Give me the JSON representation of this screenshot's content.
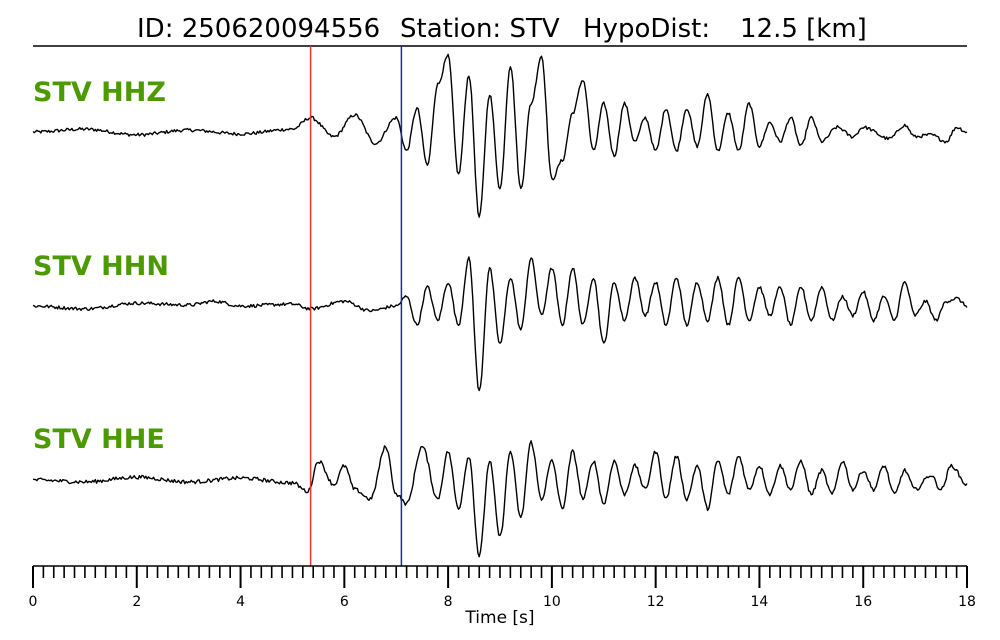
{
  "chart_data": {
    "type": "line",
    "title_parts": {
      "id": "ID: 250620094556",
      "station": "Station: STV",
      "hypodist_label": "HypoDist:",
      "hypodist_value": "12.5 [km]"
    },
    "xlabel": "Time [s]",
    "xlim": [
      0,
      18
    ],
    "x_major_ticks": [
      0,
      2,
      4,
      6,
      8,
      10,
      12,
      14,
      16,
      18
    ],
    "x_tick_labels": [
      "0",
      "2",
      "4",
      "6",
      "8",
      "10",
      "12",
      "14",
      "16",
      "18"
    ],
    "x_minor_step": 0.2,
    "grid": false,
    "picks": [
      {
        "phase_color": "#e8332a",
        "time": 5.35
      },
      {
        "phase_color": "#2222bb",
        "time": 7.1
      }
    ],
    "series": [
      {
        "name": "STV HHZ",
        "color": "#000000",
        "anchors": [
          [
            0,
            0
          ],
          [
            1,
            0.3
          ],
          [
            2,
            -0.3
          ],
          [
            3,
            0.2
          ],
          [
            4,
            -0.2
          ],
          [
            5,
            0.3
          ],
          [
            5.35,
            1.5
          ],
          [
            5.8,
            -0.5
          ],
          [
            6.2,
            1.8
          ],
          [
            6.6,
            -1.2
          ],
          [
            7.0,
            1.5
          ],
          [
            7.2,
            -2
          ],
          [
            7.4,
            2.5
          ],
          [
            7.6,
            -3.5
          ],
          [
            7.8,
            5
          ],
          [
            8.0,
            8
          ],
          [
            8.2,
            -4.5
          ],
          [
            8.4,
            6
          ],
          [
            8.6,
            -9
          ],
          [
            8.8,
            4
          ],
          [
            9.0,
            -6
          ],
          [
            9.2,
            7
          ],
          [
            9.4,
            -6
          ],
          [
            9.6,
            3
          ],
          [
            9.8,
            8
          ],
          [
            10.0,
            -5
          ],
          [
            10.2,
            -3
          ],
          [
            10.4,
            2
          ],
          [
            10.6,
            5.5
          ],
          [
            10.8,
            -2
          ],
          [
            11.0,
            3
          ],
          [
            11.2,
            -2.5
          ],
          [
            11.4,
            3
          ],
          [
            11.6,
            -1
          ],
          [
            11.8,
            1.5
          ],
          [
            12.0,
            -2
          ],
          [
            12.2,
            2.5
          ],
          [
            12.4,
            -2
          ],
          [
            12.6,
            2.5
          ],
          [
            12.8,
            -1.5
          ],
          [
            13.0,
            4
          ],
          [
            13.2,
            -2
          ],
          [
            13.4,
            2
          ],
          [
            13.6,
            -2
          ],
          [
            13.8,
            3
          ],
          [
            14.0,
            -1.5
          ],
          [
            14.2,
            1
          ],
          [
            14.4,
            -1
          ],
          [
            14.6,
            1.5
          ],
          [
            14.8,
            -1.5
          ],
          [
            15.0,
            1.5
          ],
          [
            15.2,
            -1
          ],
          [
            15.5,
            0.5
          ],
          [
            15.8,
            -0.5
          ],
          [
            16.0,
            0.5
          ],
          [
            16.5,
            -0.7
          ],
          [
            16.8,
            0.7
          ],
          [
            17.0,
            -0.5
          ],
          [
            17.3,
            -0.3
          ],
          [
            17.6,
            -1
          ],
          [
            17.8,
            0.5
          ],
          [
            18.0,
            0
          ]
        ],
        "noise_amp": 0.35
      },
      {
        "name": "STV HHN",
        "color": "#000000",
        "anchors": [
          [
            0,
            0
          ],
          [
            1,
            -0.3
          ],
          [
            2,
            0.3
          ],
          [
            3,
            0.1
          ],
          [
            3.5,
            0.5
          ],
          [
            4,
            0
          ],
          [
            5,
            0.2
          ],
          [
            5.35,
            -0.3
          ],
          [
            6,
            0.5
          ],
          [
            6.5,
            -0.5
          ],
          [
            7.0,
            0
          ],
          [
            7.2,
            1
          ],
          [
            7.4,
            -2
          ],
          [
            7.6,
            2
          ],
          [
            7.8,
            -1.5
          ],
          [
            8.0,
            2.5
          ],
          [
            8.2,
            -2
          ],
          [
            8.4,
            5
          ],
          [
            8.6,
            -9
          ],
          [
            8.8,
            4
          ],
          [
            9.0,
            -4
          ],
          [
            9.2,
            3
          ],
          [
            9.4,
            -2.5
          ],
          [
            9.6,
            5
          ],
          [
            9.8,
            -1
          ],
          [
            10.0,
            4
          ],
          [
            10.2,
            -2
          ],
          [
            10.4,
            4
          ],
          [
            10.6,
            -2
          ],
          [
            10.8,
            3
          ],
          [
            11.0,
            -4
          ],
          [
            11.2,
            2.5
          ],
          [
            11.4,
            -1.5
          ],
          [
            11.6,
            3
          ],
          [
            11.8,
            -1
          ],
          [
            12.0,
            2.5
          ],
          [
            12.2,
            -2
          ],
          [
            12.4,
            3
          ],
          [
            12.6,
            -2
          ],
          [
            12.8,
            2.5
          ],
          [
            13.0,
            -1.5
          ],
          [
            13.2,
            3
          ],
          [
            13.4,
            -2
          ],
          [
            13.6,
            3
          ],
          [
            13.8,
            -1.5
          ],
          [
            14.0,
            2
          ],
          [
            14.2,
            -1
          ],
          [
            14.4,
            2
          ],
          [
            14.6,
            -2
          ],
          [
            14.8,
            2
          ],
          [
            15.0,
            -1.5
          ],
          [
            15.2,
            2
          ],
          [
            15.4,
            -1.5
          ],
          [
            15.6,
            1
          ],
          [
            15.8,
            -1
          ],
          [
            16.0,
            1.5
          ],
          [
            16.2,
            -1.5
          ],
          [
            16.4,
            1
          ],
          [
            16.6,
            -1.5
          ],
          [
            16.8,
            2.5
          ],
          [
            17.0,
            -1
          ],
          [
            17.2,
            0.5
          ],
          [
            17.4,
            -1.5
          ],
          [
            17.6,
            0.5
          ],
          [
            17.8,
            0.8
          ],
          [
            18.0,
            0
          ]
        ],
        "noise_amp": 0.35
      },
      {
        "name": "STV HHE",
        "color": "#000000",
        "anchors": [
          [
            0,
            0
          ],
          [
            1,
            -0.2
          ],
          [
            2,
            0.3
          ],
          [
            3,
            -0.2
          ],
          [
            4,
            0.2
          ],
          [
            5,
            -0.3
          ],
          [
            5.3,
            -1.2
          ],
          [
            5.5,
            2
          ],
          [
            5.8,
            -0.5
          ],
          [
            6.0,
            1.5
          ],
          [
            6.2,
            -1
          ],
          [
            6.5,
            -2
          ],
          [
            6.8,
            3.5
          ],
          [
            7.0,
            -1.5
          ],
          [
            7.2,
            -2.5
          ],
          [
            7.5,
            3.5
          ],
          [
            7.8,
            -2
          ],
          [
            8.0,
            3
          ],
          [
            8.2,
            -3
          ],
          [
            8.4,
            2.5
          ],
          [
            8.6,
            -8
          ],
          [
            8.8,
            2
          ],
          [
            9.0,
            -6
          ],
          [
            9.2,
            3
          ],
          [
            9.4,
            -4
          ],
          [
            9.6,
            4
          ],
          [
            9.8,
            -2
          ],
          [
            10.0,
            2
          ],
          [
            10.2,
            -3
          ],
          [
            10.4,
            3
          ],
          [
            10.6,
            -2
          ],
          [
            10.8,
            2
          ],
          [
            11.0,
            -2.5
          ],
          [
            11.2,
            2
          ],
          [
            11.4,
            -1.5
          ],
          [
            11.6,
            1.5
          ],
          [
            11.8,
            -1
          ],
          [
            12.0,
            3
          ],
          [
            12.2,
            -2
          ],
          [
            12.4,
            2.5
          ],
          [
            12.6,
            -2
          ],
          [
            12.8,
            1.5
          ],
          [
            13.0,
            -3
          ],
          [
            13.2,
            2
          ],
          [
            13.4,
            -1.5
          ],
          [
            13.6,
            2.5
          ],
          [
            13.8,
            -1
          ],
          [
            14.0,
            1.5
          ],
          [
            14.2,
            -1.5
          ],
          [
            14.4,
            1.5
          ],
          [
            14.6,
            -1
          ],
          [
            14.8,
            2
          ],
          [
            15.0,
            -1.5
          ],
          [
            15.2,
            1
          ],
          [
            15.4,
            -1.5
          ],
          [
            15.6,
            2
          ],
          [
            15.8,
            -1
          ],
          [
            16.0,
            1
          ],
          [
            16.2,
            -1
          ],
          [
            16.4,
            1.5
          ],
          [
            16.6,
            -1.5
          ],
          [
            16.8,
            1
          ],
          [
            17.0,
            -1
          ],
          [
            17.3,
            0.5
          ],
          [
            17.5,
            -1
          ],
          [
            17.7,
            1.5
          ],
          [
            18.0,
            -0.5
          ]
        ],
        "noise_amp": 0.4
      }
    ]
  }
}
